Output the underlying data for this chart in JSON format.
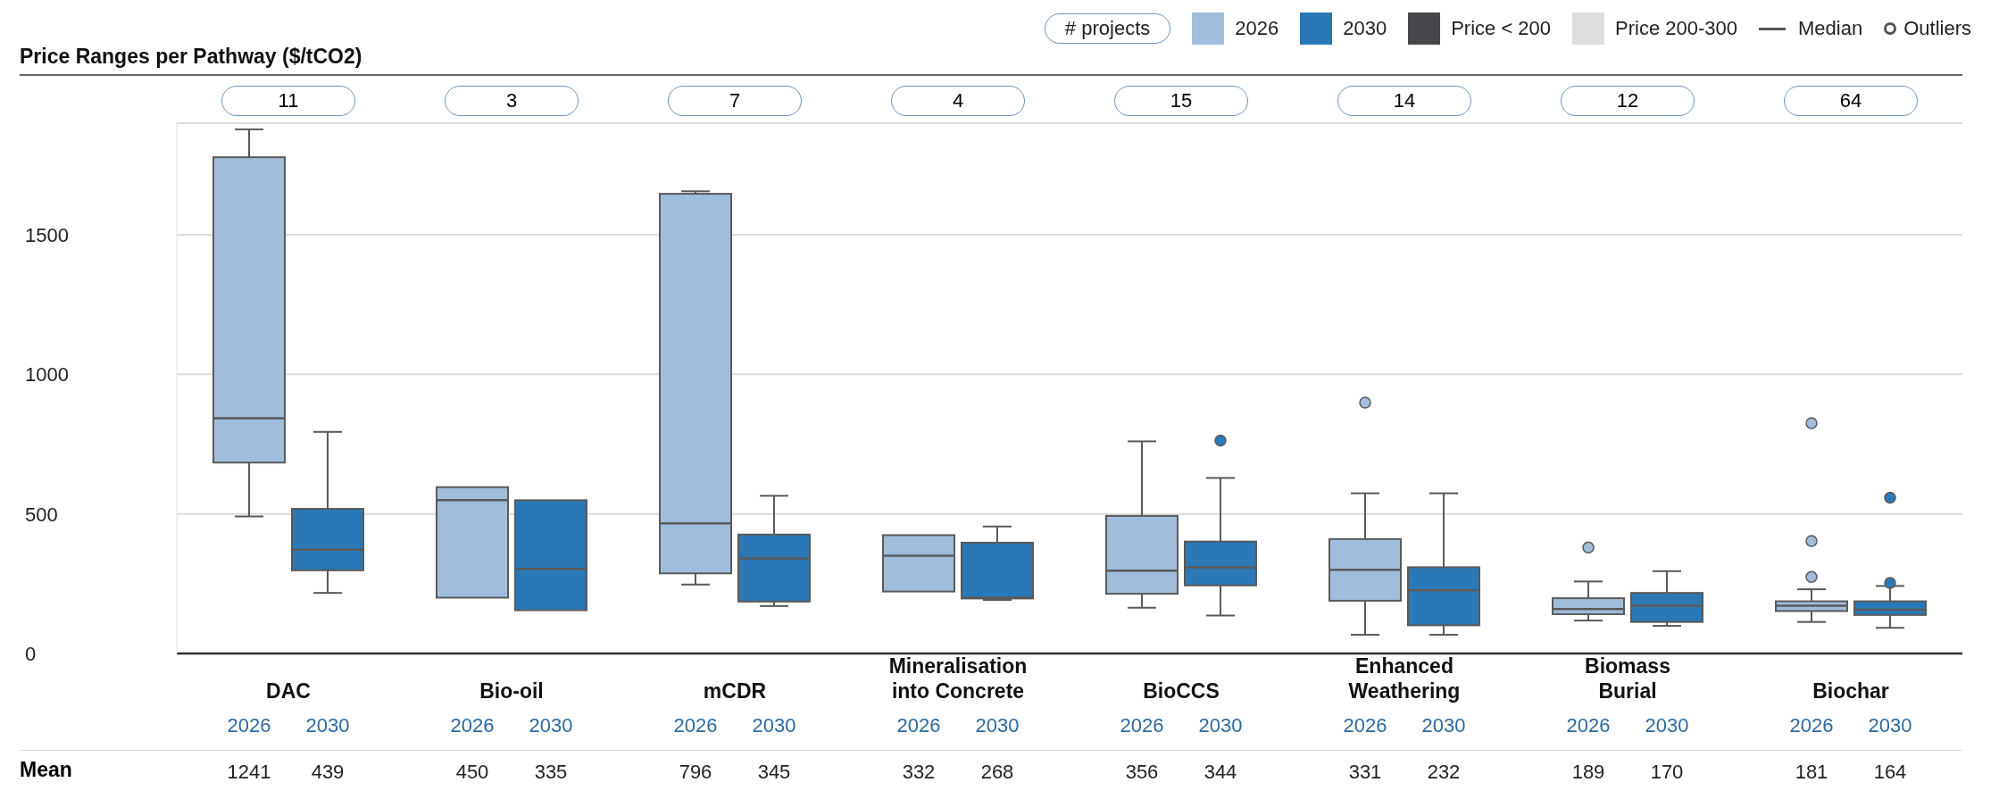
{
  "chart_data": {
    "type": "box",
    "title": "Price Ranges per Pathway ($/tCO2)",
    "categories": [
      "DAC",
      "Bio-oil",
      "mCDR",
      "Mineralisation into Concrete",
      "BioCCS",
      "Enhanced Weathering",
      "Biomass Burial",
      "Biochar"
    ],
    "series": [
      {
        "name": "2026",
        "color": "#a0bddc",
        "value_labels": [
          "1241",
          "450",
          "796",
          "332",
          "356",
          "331",
          "189",
          "181"
        ],
        "boxes": [
          {
            "low": 491,
            "q1": 684,
            "median": 843,
            "q3": 1778,
            "high": 1878
          },
          {
            "low": 200,
            "q1": 200,
            "median": 549,
            "q3": 596,
            "high": 596
          },
          {
            "low": 247,
            "q1": 287,
            "median": 466,
            "q3": 1647,
            "high": 1656
          },
          {
            "low": 222,
            "q1": 222,
            "median": 350,
            "q3": 424,
            "high": 424
          },
          {
            "low": 164,
            "q1": 214,
            "median": 297,
            "q3": 493,
            "high": 760
          },
          {
            "low": 67,
            "q1": 189,
            "median": 300,
            "q3": 410,
            "high": 574,
            "outliers": [
              899
            ]
          },
          {
            "low": 118,
            "q1": 141,
            "median": 159,
            "q3": 198,
            "high": 258,
            "outliers": [
              380
            ]
          },
          {
            "low": 113,
            "q1": 152,
            "median": 171,
            "q3": 187,
            "high": 230,
            "outliers": [
              825,
              403,
              274
            ]
          }
        ]
      },
      {
        "name": "2030",
        "color": "#2a78b5",
        "value_labels": [
          "439",
          "335",
          "345",
          "268",
          "344",
          "232",
          "170",
          "164"
        ],
        "boxes": [
          {
            "low": 217,
            "q1": 298,
            "median": 372,
            "q3": 518,
            "high": 794
          },
          {
            "low": 155,
            "q1": 155,
            "median": 303,
            "q3": 549,
            "high": 549
          },
          {
            "low": 170,
            "q1": 186,
            "median": 341,
            "q3": 426,
            "high": 565
          },
          {
            "low": 192,
            "q1": 197,
            "median": 200,
            "q3": 397,
            "high": 455
          },
          {
            "low": 136,
            "q1": 244,
            "median": 309,
            "q3": 401,
            "high": 629,
            "outliers": [
              763
            ]
          },
          {
            "low": 67,
            "q1": 101,
            "median": 226,
            "q3": 309,
            "high": 574
          },
          {
            "low": 99,
            "q1": 113,
            "median": 171,
            "q3": 217,
            "high": 295
          },
          {
            "low": 92,
            "q1": 138,
            "median": 157,
            "q3": 187,
            "high": 242,
            "outliers": [
              558,
              253
            ]
          }
        ]
      }
    ],
    "ylim": [
      0,
      1900
    ],
    "yticks": [
      0,
      500,
      1000,
      1500
    ],
    "grid": "y",
    "legend": "top right",
    "marker": "circle",
    "annotations": [
      "# projects",
      "Price < 200",
      "Price 200-300",
      "Median",
      "Outliers",
      "Mean",
      "11",
      "3",
      "7",
      "4",
      "15",
      "14",
      "12",
      "64"
    ]
  }
}
